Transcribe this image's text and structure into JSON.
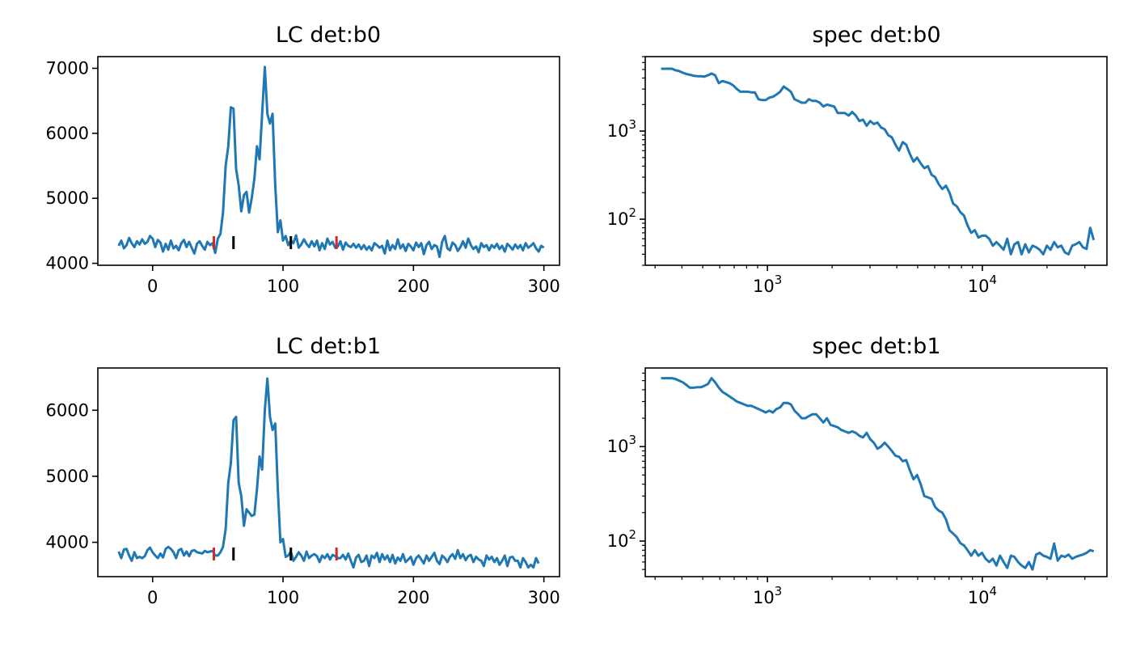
{
  "colors": {
    "line": "#1f77b4",
    "marker_black": "#000000",
    "marker_red": "#d62728"
  },
  "chart_data": [
    {
      "id": "lc-b0",
      "type": "line",
      "title": "LC det:b0",
      "xlabel": "",
      "ylabel": "",
      "xscale": "linear",
      "yscale": "linear",
      "xlim": [
        -42,
        312
      ],
      "ylim": [
        3970,
        7180
      ],
      "xticks": [
        {
          "v": 0,
          "label": "0"
        },
        {
          "v": 100,
          "label": "100"
        },
        {
          "v": 200,
          "label": "200"
        },
        {
          "v": 300,
          "label": "300"
        }
      ],
      "yticks": [
        {
          "v": 4000,
          "label": "4000"
        },
        {
          "v": 5000,
          "label": "5000"
        },
        {
          "v": 6000,
          "label": "6000"
        },
        {
          "v": 7000,
          "label": "7000"
        }
      ],
      "markers": [
        {
          "x": 47,
          "color": "red"
        },
        {
          "x": 62,
          "color": "black"
        },
        {
          "x": 106,
          "color": "black"
        },
        {
          "x": 141,
          "color": "red"
        }
      ],
      "x_start": -26,
      "x_step": 2,
      "values": [
        4270,
        4350,
        4230,
        4280,
        4390,
        4310,
        4250,
        4340,
        4290,
        4370,
        4300,
        4330,
        4420,
        4380,
        4250,
        4360,
        4320,
        4180,
        4300,
        4210,
        4350,
        4230,
        4270,
        4200,
        4310,
        4360,
        4250,
        4330,
        4240,
        4150,
        4300,
        4340,
        4270,
        4210,
        4330,
        4280,
        4310,
        4160,
        4380,
        4450,
        4780,
        5500,
        5800,
        6400,
        6380,
        5450,
        5200,
        4800,
        5050,
        5100,
        4780,
        5000,
        5300,
        5800,
        5600,
        6300,
        7020,
        6300,
        6150,
        6300,
        5200,
        4480,
        4660,
        4350,
        4420,
        4280,
        4350,
        4310,
        4430,
        4240,
        4290,
        4370,
        4300,
        4250,
        4340,
        4260,
        4350,
        4200,
        4310,
        4220,
        4380,
        4290,
        4330,
        4240,
        4260,
        4340,
        4210,
        4320,
        4270,
        4250,
        4300,
        4240,
        4290,
        4220,
        4280,
        4210,
        4260,
        4200,
        4310,
        4280,
        4240,
        4270,
        4150,
        4350,
        4200,
        4280,
        4220,
        4370,
        4230,
        4290,
        4190,
        4300,
        4260,
        4200,
        4320,
        4250,
        4310,
        4140,
        4280,
        4330,
        4220,
        4280,
        4260,
        4100,
        4330,
        4420,
        4230,
        4200,
        4320,
        4280,
        4190,
        4250,
        4340,
        4240,
        4380,
        4280,
        4220,
        4260,
        4170,
        4310,
        4250,
        4280,
        4200,
        4280,
        4240,
        4300,
        4220,
        4270,
        4180,
        4300,
        4260,
        4210,
        4290,
        4230,
        4280,
        4200,
        4310,
        4240,
        4270,
        4310,
        4230,
        4180,
        4270,
        4240
      ]
    },
    {
      "id": "spec-b0",
      "type": "line",
      "title": "spec det:b0",
      "xlabel": "",
      "ylabel": "",
      "xscale": "log",
      "yscale": "log",
      "xlim": [
        270,
        38000
      ],
      "ylim": [
        30,
        7000
      ],
      "xticks": [
        {
          "v": 1000,
          "base": "10",
          "exp": "3"
        },
        {
          "v": 10000,
          "base": "10",
          "exp": "4"
        }
      ],
      "yticks": [
        {
          "v": 100,
          "base": "10",
          "exp": "2"
        },
        {
          "v": 1000,
          "base": "10",
          "exp": "3"
        }
      ],
      "log_points": 120,
      "x_first": 320,
      "x_last": 33000,
      "values": [
        5100,
        5100,
        5100,
        5100,
        4900,
        4800,
        4600,
        4450,
        4350,
        4250,
        4200,
        4200,
        4150,
        4300,
        4500,
        4300,
        3500,
        3700,
        3600,
        3500,
        3300,
        3000,
        2800,
        2800,
        2800,
        2750,
        2750,
        2300,
        2250,
        2250,
        2400,
        2450,
        2600,
        2800,
        3200,
        3000,
        2800,
        2300,
        2200,
        2100,
        2100,
        2300,
        2200,
        2200,
        2100,
        1900,
        2000,
        1950,
        1900,
        1600,
        1600,
        1600,
        1500,
        1650,
        1500,
        1300,
        1350,
        1150,
        1300,
        1200,
        1250,
        1100,
        1050,
        900,
        850,
        700,
        600,
        750,
        700,
        550,
        450,
        500,
        430,
        380,
        400,
        320,
        300,
        250,
        220,
        240,
        200,
        150,
        140,
        120,
        110,
        85,
        70,
        75,
        62,
        65,
        65,
        60,
        50,
        55,
        50,
        45,
        60,
        40,
        52,
        55,
        40,
        52,
        42,
        50,
        48,
        45,
        40,
        50,
        45,
        55,
        48,
        50,
        42,
        40,
        50,
        52,
        55,
        48,
        46,
        80,
        58
      ]
    },
    {
      "id": "lc-b1",
      "type": "line",
      "title": "LC det:b1",
      "xlabel": "",
      "ylabel": "",
      "xscale": "linear",
      "yscale": "linear",
      "xlim": [
        -42,
        312
      ],
      "ylim": [
        3480,
        6640
      ],
      "xticks": [
        {
          "v": 0,
          "label": "0"
        },
        {
          "v": 100,
          "label": "100"
        },
        {
          "v": 200,
          "label": "200"
        },
        {
          "v": 300,
          "label": "300"
        }
      ],
      "yticks": [
        {
          "v": 4000,
          "label": "4000"
        },
        {
          "v": 5000,
          "label": "5000"
        },
        {
          "v": 6000,
          "label": "6000"
        }
      ],
      "markers": [
        {
          "x": 47,
          "color": "red"
        },
        {
          "x": 62,
          "color": "black"
        },
        {
          "x": 106,
          "color": "black"
        },
        {
          "x": 141,
          "color": "red"
        }
      ],
      "x_start": -26,
      "x_step": 2,
      "values": [
        3860,
        3760,
        3890,
        3900,
        3800,
        3720,
        3850,
        3760,
        3780,
        3760,
        3790,
        3880,
        3920,
        3850,
        3800,
        3760,
        3830,
        3770,
        3900,
        3930,
        3900,
        3850,
        3760,
        3880,
        3900,
        3800,
        3860,
        3790,
        3870,
        3880,
        3850,
        3840,
        3830,
        3870,
        3850,
        3860,
        3870,
        3800,
        3800,
        3850,
        3930,
        4200,
        4900,
        5200,
        5850,
        5900,
        4900,
        4700,
        4250,
        4500,
        4450,
        4400,
        4420,
        4800,
        5300,
        5100,
        6000,
        6480,
        5900,
        5700,
        5800,
        4800,
        4000,
        4050,
        3780,
        3800,
        3860,
        3720,
        3780,
        3850,
        3800,
        3720,
        3860,
        3760,
        3800,
        3820,
        3790,
        3700,
        3800,
        3760,
        3820,
        3740,
        3810,
        3790,
        3760,
        3760,
        3810,
        3740,
        3830,
        3720,
        3620,
        3770,
        3810,
        3700,
        3720,
        3800,
        3640,
        3800,
        3760,
        3840,
        3700,
        3820,
        3740,
        3800,
        3700,
        3810,
        3680,
        3770,
        3720,
        3820,
        3700,
        3740,
        3780,
        3660,
        3760,
        3800,
        3740,
        3680,
        3800,
        3720,
        3780,
        3840,
        3720,
        3670,
        3800,
        3760,
        3700,
        3780,
        3820,
        3750,
        3880,
        3760,
        3820,
        3730,
        3790,
        3810,
        3700,
        3780,
        3740,
        3720,
        3640,
        3800,
        3740,
        3780,
        3700,
        3760,
        3660,
        3720,
        3800,
        3640,
        3770,
        3780,
        3720,
        3720,
        3620,
        3760,
        3700,
        3620,
        3660,
        3620,
        3760,
        3680
      ]
    },
    {
      "id": "spec-b1",
      "type": "line",
      "title": "spec det:b1",
      "xlabel": "",
      "ylabel": "",
      "xscale": "log",
      "yscale": "log",
      "xlim": [
        270,
        38000
      ],
      "ylim": [
        42,
        6800
      ],
      "xticks": [
        {
          "v": 1000,
          "base": "10",
          "exp": "3"
        },
        {
          "v": 10000,
          "base": "10",
          "exp": "4"
        }
      ],
      "yticks": [
        {
          "v": 100,
          "base": "10",
          "exp": "2"
        },
        {
          "v": 1000,
          "base": "10",
          "exp": "3"
        }
      ],
      "log_points": 120,
      "x_first": 320,
      "x_last": 33000,
      "values": [
        5300,
        5300,
        5300,
        5300,
        5200,
        5000,
        4800,
        4500,
        4200,
        4200,
        4250,
        4250,
        4400,
        4600,
        5300,
        4800,
        4200,
        3800,
        3600,
        3400,
        3200,
        3000,
        2900,
        2800,
        2700,
        2700,
        2600,
        2500,
        2400,
        2300,
        2400,
        2300,
        2500,
        2600,
        2900,
        2900,
        2800,
        2400,
        2200,
        2000,
        2000,
        2100,
        2200,
        2200,
        2000,
        1800,
        2000,
        1700,
        1650,
        1600,
        1500,
        1450,
        1400,
        1450,
        1400,
        1300,
        1250,
        1400,
        1200,
        1100,
        950,
        1000,
        1100,
        1000,
        900,
        800,
        780,
        700,
        720,
        560,
        450,
        500,
        400,
        300,
        290,
        280,
        230,
        210,
        200,
        170,
        130,
        120,
        110,
        95,
        90,
        80,
        70,
        80,
        70,
        75,
        65,
        60,
        65,
        55,
        70,
        60,
        52,
        70,
        68,
        60,
        55,
        52,
        60,
        50,
        72,
        75,
        70,
        68,
        65,
        94,
        62,
        70,
        68,
        72,
        65,
        68,
        70,
        72,
        75,
        80,
        78
      ]
    }
  ]
}
